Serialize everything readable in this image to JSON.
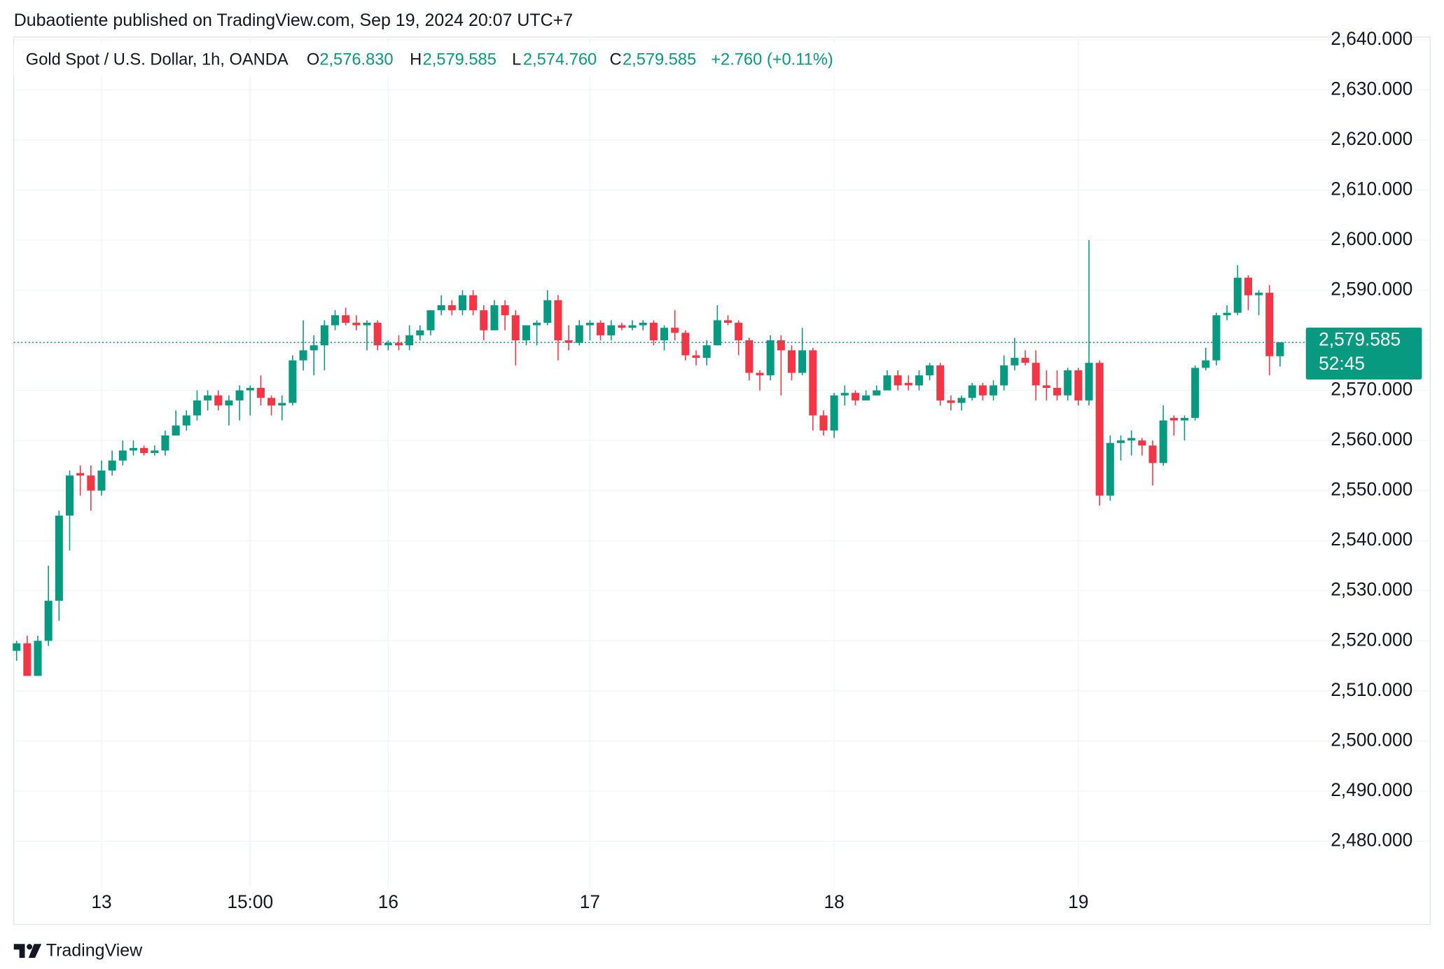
{
  "header": {
    "publisher_line": "Dubaotiente published on TradingView.com, Sep 19, 2024 20:07 UTC+7"
  },
  "chart_data": {
    "type": "candlestick",
    "title": "Gold Spot / U.S. Dollar, 1h, OANDA",
    "ohlc_legend": {
      "open_label": "O",
      "open": "2,576.830",
      "high_label": "H",
      "high": "2,579.585",
      "low_label": "L",
      "low": "2,574.760",
      "close_label": "C",
      "close": "2,579.585",
      "change": "+2.760 (+0.11%)"
    },
    "categories": [
      null,
      null,
      null,
      null,
      null,
      null,
      null,
      null,
      "13",
      null,
      null,
      null,
      null,
      null,
      null,
      null,
      null,
      null,
      null,
      null,
      null,
      null,
      "15:00",
      null,
      null,
      null,
      null,
      null,
      null,
      null,
      null,
      null,
      null,
      null,
      null,
      "16",
      null,
      null,
      null,
      null,
      null,
      null,
      null,
      null,
      null,
      null,
      null,
      null,
      null,
      null,
      null,
      null,
      null,
      null,
      "17",
      null,
      null,
      null,
      null,
      null,
      null,
      null,
      null,
      null,
      null,
      null,
      null,
      null,
      null,
      null,
      null,
      null,
      null,
      null,
      null,
      null,
      null,
      "18",
      null,
      null,
      null,
      null,
      null,
      null,
      null,
      null,
      null,
      null,
      null,
      null,
      null,
      null,
      null,
      null,
      null,
      null,
      null,
      null,
      null,
      null,
      "19",
      null,
      null,
      null,
      null,
      null,
      null,
      null,
      null,
      null,
      null,
      null,
      null,
      null,
      null,
      null,
      null,
      null,
      null,
      null
    ],
    "open": [
      2518,
      2519.5,
      2513,
      2520,
      2528,
      2545,
      2553.5,
      2553,
      2550,
      2554,
      2556,
      2558,
      2558.5,
      2557.5,
      2558,
      2561,
      2563,
      2565,
      2568,
      2569,
      2567,
      2568,
      2570,
      2570.5,
      2568.5,
      2567,
      2567.5,
      2576,
      2578,
      2579,
      2583,
      2585,
      2583.5,
      2583,
      2583.5,
      2579,
      2579.5,
      2579,
      2581,
      2582,
      2586,
      2587,
      2586,
      2589,
      2586,
      2582,
      2587,
      2585,
      2580,
      2583,
      2583.5,
      2588,
      2580,
      2579.5,
      2583,
      2583.5,
      2581,
      2583,
      2582.5,
      2583,
      2583.5,
      2580,
      2582.5,
      2581.5,
      2577,
      2576.5,
      2579,
      2584,
      2583.5,
      2580,
      2573.5,
      2573,
      2580,
      2578,
      2573.5,
      2578,
      2565,
      2562,
      2569,
      2569.5,
      2568,
      2569,
      2570,
      2573,
      2571.5,
      2571,
      2573,
      2575,
      2568,
      2567.5,
      2568.5,
      2571,
      2569,
      2571,
      2575,
      2576.5,
      2575.5,
      2571,
      2570.5,
      2569,
      2574,
      2568,
      2575.5,
      2549,
      2559.5,
      2560,
      2560,
      2559,
      2555.5,
      2564.5,
      2564,
      2564.5,
      2574.5,
      2576,
      2585,
      2585.5,
      2592.5,
      2589,
      2589.5,
      2576.83
    ],
    "high": [
      2520,
      2521,
      2521,
      2535,
      2546,
      2554,
      2555,
      2555,
      2556,
      2558,
      2560,
      2560,
      2559,
      2559,
      2562,
      2566,
      2566,
      2570,
      2570,
      2570,
      2569,
      2571,
      2571,
      2573,
      2569,
      2569,
      2577,
      2584,
      2581,
      2584,
      2586,
      2586.5,
      2585,
      2584,
      2584,
      2580,
      2581,
      2583,
      2583,
      2586,
      2589,
      2588,
      2590,
      2590,
      2587,
      2588,
      2588,
      2586,
      2583,
      2584,
      2590,
      2589,
      2583,
      2584,
      2584,
      2584,
      2584,
      2583.5,
      2584,
      2584,
      2584,
      2583,
      2586,
      2582,
      2578,
      2580,
      2587,
      2585,
      2584,
      2580.5,
      2574,
      2581,
      2581,
      2579,
      2582.5,
      2578.5,
      2566,
      2569.5,
      2571,
      2570,
      2570,
      2571,
      2574,
      2574,
      2573,
      2574,
      2575.5,
      2575.5,
      2569,
      2569,
      2571.5,
      2571.5,
      2572,
      2577,
      2580.5,
      2578,
      2578,
      2574,
      2574,
      2574.5,
      2574.5,
      2600,
      2576,
      2561,
      2561,
      2562,
      2560.5,
      2560,
      2567,
      2565,
      2565,
      2575,
      2578.5,
      2585.5,
      2587,
      2595,
      2593,
      2590,
      2591,
      2579.585
    ],
    "low": [
      2516,
      2513,
      2513,
      2519,
      2524,
      2538,
      2549,
      2546,
      2549,
      2553,
      2555,
      2557,
      2557,
      2557,
      2557,
      2561,
      2562,
      2564,
      2566,
      2566,
      2563,
      2564,
      2565,
      2567,
      2565,
      2564,
      2567,
      2574,
      2573,
      2574,
      2582,
      2583,
      2582,
      2578,
      2578,
      2578,
      2578,
      2578,
      2580,
      2581,
      2585,
      2585,
      2585,
      2585,
      2580,
      2582,
      2582,
      2575,
      2579,
      2579,
      2583,
      2576,
      2578,
      2579,
      2580,
      2580,
      2580,
      2582,
      2582,
      2582,
      2579,
      2578,
      2580,
      2576,
      2575,
      2575,
      2579,
      2583,
      2577,
      2572,
      2570,
      2572,
      2569,
      2572,
      2573,
      2562,
      2561,
      2560.5,
      2567,
      2567,
      2568,
      2569,
      2570,
      2570,
      2570,
      2570,
      2572,
      2567,
      2566,
      2566,
      2568,
      2568,
      2568,
      2570,
      2574,
      2575,
      2568,
      2568,
      2568,
      2568,
      2567,
      2567,
      2547,
      2548,
      2556,
      2557,
      2557,
      2551,
      2555,
      2561,
      2560,
      2564,
      2574,
      2575,
      2584,
      2585,
      2586,
      2585,
      2573,
      2574.76
    ],
    "close": [
      2519.5,
      2513,
      2520,
      2528,
      2545,
      2553,
      2553,
      2550,
      2554,
      2556,
      2558,
      2558.5,
      2557.5,
      2558,
      2561,
      2563,
      2565,
      2568,
      2569,
      2567,
      2568,
      2570,
      2570.5,
      2568.5,
      2567,
      2567.5,
      2576,
      2578,
      2579,
      2583,
      2585,
      2583.5,
      2583,
      2583.5,
      2579,
      2579.5,
      2579,
      2581,
      2582,
      2586,
      2587,
      2586,
      2589,
      2586,
      2582,
      2587,
      2585,
      2580,
      2583,
      2583.5,
      2588,
      2580,
      2579.5,
      2583,
      2583.5,
      2581,
      2583,
      2582.5,
      2583,
      2583.5,
      2580,
      2582.5,
      2581.5,
      2577,
      2576.5,
      2579,
      2584,
      2583.5,
      2580,
      2573.5,
      2573,
      2580,
      2578,
      2573.5,
      2578,
      2565,
      2562,
      2569,
      2569.5,
      2568,
      2569,
      2570,
      2573,
      2571,
      2571,
      2573,
      2575,
      2568,
      2567.5,
      2568.5,
      2571,
      2569,
      2571,
      2575,
      2576.5,
      2575.5,
      2571,
      2570.5,
      2569,
      2574,
      2568,
      2575.5,
      2549,
      2559.5,
      2560,
      2560.5,
      2559,
      2555.5,
      2564,
      2564,
      2564.5,
      2574.5,
      2576,
      2585,
      2585.5,
      2592.5,
      2589,
      2589.5,
      2576.83,
      2579.585
    ],
    "up_color": "#089981",
    "down_color": "#f23645",
    "ylim": [
      2470.75,
      2640.55
    ],
    "yticks": [
      {
        "value": 2480,
        "label": "2,480.000"
      },
      {
        "value": 2490,
        "label": "2,490.000"
      },
      {
        "value": 2500,
        "label": "2,500.000"
      },
      {
        "value": 2510,
        "label": "2,510.000"
      },
      {
        "value": 2520,
        "label": "2,520.000"
      },
      {
        "value": 2530,
        "label": "2,530.000"
      },
      {
        "value": 2540,
        "label": "2,540.000"
      },
      {
        "value": 2550,
        "label": "2,550.000"
      },
      {
        "value": 2560,
        "label": "2,560.000"
      },
      {
        "value": 2570,
        "label": "2,570.000"
      },
      {
        "value": 2580,
        "label": "2,580.000"
      },
      {
        "value": 2590,
        "label": "2,590.000"
      },
      {
        "value": 2600,
        "label": "2,600.000"
      },
      {
        "value": 2610,
        "label": "2,610.000"
      },
      {
        "value": 2620,
        "label": "2,620.000"
      },
      {
        "value": 2630,
        "label": "2,630.000"
      },
      {
        "value": 2640,
        "label": "2,640.000"
      }
    ],
    "grid": true,
    "last_price": {
      "value": 2579.585,
      "label": "2,579.585"
    },
    "countdown": "52:45"
  },
  "footer": {
    "brand": "TradingView"
  }
}
